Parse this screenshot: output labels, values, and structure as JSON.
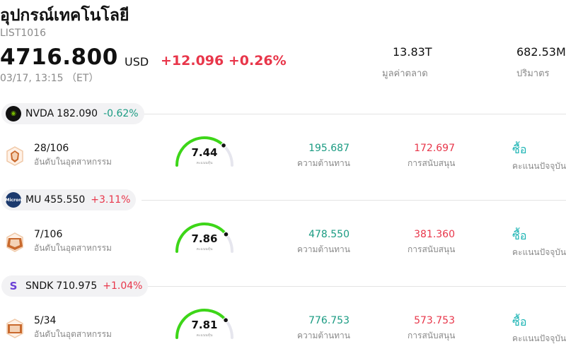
{
  "header": {
    "title": "อุปกรณ์เทคโนโลยี",
    "code": "LIST1016",
    "price": "4716.800",
    "currency": "USD",
    "change": "+12.096 +0.26%",
    "time": "03/17, 13:15 （ET）",
    "market_cap_value": "13.83T",
    "market_cap_label": "มูลค่าตลาด",
    "volume_value": "682.53M",
    "volume_label": "ปริมาตร"
  },
  "colors": {
    "up": "#e8364a",
    "down": "#1a9b82",
    "gauge": "#3dd618",
    "action": "#19b3b3"
  },
  "stocks": [
    {
      "symbol": "NVDA",
      "price": "182.090",
      "change": "-0.62%",
      "logo_icon": "nvidia-logo",
      "rank": "28/106",
      "rank_label": "อันดับในอุตสาหกรรม",
      "score": "7.44",
      "score_label": "คะแนนหุ้น",
      "score_fraction": 0.744,
      "resistance": "195.687",
      "resistance_label": "ความต้านทาน",
      "support": "172.697",
      "support_label": "การสนับสนุน",
      "action": "ซื้อ",
      "action_label": "คะแนนปัจจุบัน"
    },
    {
      "symbol": "MU",
      "price": "455.550",
      "change": "+3.11%",
      "logo_icon": "micron-logo",
      "rank": "7/106",
      "rank_label": "อันดับในอุตสาหกรรม",
      "score": "7.86",
      "score_label": "คะแนนหุ้น",
      "score_fraction": 0.786,
      "resistance": "478.550",
      "resistance_label": "ความต้านทาน",
      "support": "381.360",
      "support_label": "การสนับสนุน",
      "action": "ซื้อ",
      "action_label": "คะแนนปัจจุบัน"
    },
    {
      "symbol": "SNDK",
      "price": "710.975",
      "change": "+1.04%",
      "logo_icon": "sandisk-logo",
      "rank": "5/34",
      "rank_label": "อันดับในอุตสาหกรรม",
      "score": "7.81",
      "score_label": "คะแนนหุ้น",
      "score_fraction": 0.781,
      "resistance": "776.753",
      "resistance_label": "ความต้านทาน",
      "support": "573.753",
      "support_label": "การสนับสนุน",
      "action": "ซื้อ",
      "action_label": "คะแนนปัจจุบัน"
    }
  ]
}
